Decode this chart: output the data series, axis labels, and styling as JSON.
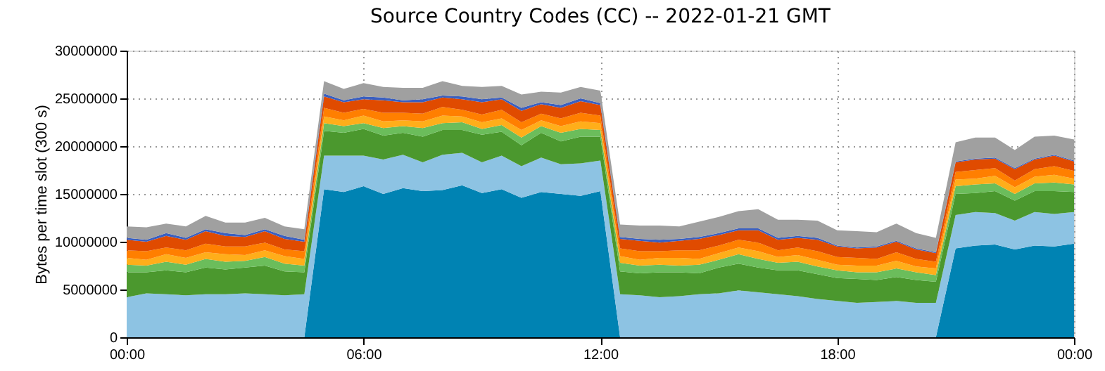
{
  "chart_data": {
    "type": "area",
    "stacked": true,
    "title": "Source Country Codes (CC) -- 2022-01-21 GMT",
    "ylabel": "Bytes per time slot (300 s)",
    "x": [
      0,
      0.5,
      1,
      1.5,
      2,
      2.5,
      3,
      3.5,
      4,
      4.5,
      5,
      5.5,
      6,
      6.5,
      7,
      7.5,
      8,
      8.5,
      9,
      9.5,
      10,
      10.5,
      11,
      11.5,
      12,
      12.5,
      13,
      13.5,
      14,
      14.5,
      15,
      15.5,
      16,
      16.5,
      17,
      17.5,
      18,
      18.5,
      19,
      19.5,
      20,
      20.5,
      21,
      21.5,
      22,
      22.5,
      23,
      23.5,
      24
    ],
    "series": [
      {
        "color": "#0083b3",
        "values": [
          0,
          0,
          0,
          0,
          0,
          0,
          0,
          0,
          0,
          0,
          15500000,
          15200000,
          15800000,
          15000000,
          15600000,
          15300000,
          15400000,
          15900000,
          15100000,
          15500000,
          14600000,
          15200000,
          15000000,
          14800000,
          15300000,
          0,
          0,
          0,
          0,
          0,
          0,
          0,
          0,
          0,
          0,
          0,
          0,
          0,
          0,
          0,
          0,
          0,
          9300000,
          9600000,
          9700000,
          9200000,
          9600000,
          9500000,
          9800000
        ]
      },
      {
        "color": "#8dc3e3",
        "values": [
          4200000,
          4600000,
          4500000,
          4400000,
          4500000,
          4500000,
          4600000,
          4500000,
          4400000,
          4500000,
          3500000,
          3800000,
          3200000,
          3600000,
          3500000,
          3000000,
          3700000,
          3400000,
          3200000,
          3500000,
          3300000,
          3600000,
          3100000,
          3400000,
          3200000,
          4500000,
          4400000,
          4200000,
          4300000,
          4500000,
          4600000,
          4900000,
          4700000,
          4500000,
          4300000,
          4000000,
          3800000,
          3600000,
          3700000,
          3800000,
          3600000,
          3600000,
          3500000,
          3500000,
          3300000,
          3000000,
          3500000,
          3400000,
          3300000
        ]
      },
      {
        "color": "#4b982e",
        "values": [
          2600000,
          2200000,
          2500000,
          2400000,
          2800000,
          2600000,
          2700000,
          3000000,
          2500000,
          2300000,
          2600000,
          2400000,
          2800000,
          2500000,
          2300000,
          2700000,
          2600000,
          2400000,
          2900000,
          2500000,
          2200000,
          2600000,
          2400000,
          2800000,
          2500000,
          2400000,
          2300000,
          2600000,
          2500000,
          2200000,
          2700000,
          2800000,
          2600000,
          2500000,
          2700000,
          2600000,
          2400000,
          2500000,
          2300000,
          2500000,
          2400000,
          2200000,
          2200000,
          2000000,
          2300000,
          2100000,
          2200000,
          2400000,
          2100000
        ]
      },
      {
        "color": "#6bbd5b",
        "values": [
          800000,
          700000,
          900000,
          800000,
          900000,
          800000,
          700000,
          900000,
          800000,
          700000,
          800000,
          700000,
          600000,
          800000,
          700000,
          900000,
          700000,
          800000,
          600000,
          700000,
          800000,
          700000,
          900000,
          800000,
          700000,
          900000,
          800000,
          800000,
          700000,
          900000,
          800000,
          1000000,
          900000,
          800000,
          900000,
          800000,
          800000,
          700000,
          800000,
          900000,
          800000,
          700000,
          800000,
          900000,
          800000,
          700000,
          800000,
          900000,
          800000
        ]
      },
      {
        "color": "#ffae1a",
        "values": [
          700000,
          600000,
          800000,
          700000,
          700000,
          800000,
          600000,
          700000,
          800000,
          700000,
          700000,
          600000,
          800000,
          700000,
          600000,
          700000,
          800000,
          600000,
          700000,
          700000,
          800000,
          600000,
          700000,
          800000,
          700000,
          700000,
          600000,
          700000,
          800000,
          600000,
          700000,
          700000,
          800000,
          600000,
          700000,
          700000,
          600000,
          700000,
          700000,
          800000,
          600000,
          700000,
          700000,
          600000,
          800000,
          700000,
          700000,
          800000,
          600000
        ]
      },
      {
        "color": "#ff7f00",
        "values": [
          800000,
          900000,
          700000,
          800000,
          900000,
          800000,
          900000,
          800000,
          700000,
          800000,
          900000,
          800000,
          700000,
          900000,
          800000,
          800000,
          900000,
          700000,
          800000,
          900000,
          800000,
          700000,
          800000,
          900000,
          800000,
          800000,
          900000,
          700000,
          800000,
          900000,
          800000,
          800000,
          900000,
          700000,
          800000,
          900000,
          800000,
          800000,
          700000,
          900000,
          800000,
          700000,
          800000,
          900000,
          800000,
          700000,
          800000,
          900000,
          800000
        ]
      },
      {
        "color": "#e04b00",
        "values": [
          1100000,
          1000000,
          1200000,
          1100000,
          1300000,
          1100000,
          1000000,
          1200000,
          1100000,
          1000000,
          1200000,
          1100000,
          1000000,
          1300000,
          1100000,
          1200000,
          1000000,
          1100000,
          1300000,
          1100000,
          1200000,
          1000000,
          1100000,
          1200000,
          1100000,
          1000000,
          1100000,
          900000,
          1000000,
          1200000,
          1100000,
          1000000,
          1300000,
          1100000,
          1000000,
          1200000,
          1100000,
          1000000,
          1200000,
          1100000,
          1000000,
          900000,
          1000000,
          1100000,
          1000000,
          1200000,
          1000000,
          1100000,
          1000000
        ]
      },
      {
        "color": "#3a5fc0",
        "values": [
          200000,
          200000,
          300000,
          200000,
          200000,
          300000,
          200000,
          200000,
          300000,
          200000,
          300000,
          200000,
          300000,
          300000,
          200000,
          300000,
          200000,
          300000,
          300000,
          200000,
          300000,
          200000,
          300000,
          300000,
          200000,
          200000,
          200000,
          300000,
          200000,
          200000,
          200000,
          200000,
          200000,
          200000,
          200000,
          200000,
          100000,
          100000,
          100000,
          100000,
          100000,
          100000,
          100000,
          100000,
          100000,
          100000,
          100000,
          100000,
          100000
        ]
      },
      {
        "color": "#a0a0a0",
        "values": [
          1200000,
          1300000,
          1000000,
          1200000,
          1400000,
          1100000,
          1300000,
          1200000,
          1000000,
          1100000,
          1300000,
          1200000,
          1400000,
          1100000,
          1300000,
          1200000,
          1500000,
          1100000,
          1300000,
          1200000,
          1400000,
          1100000,
          1300000,
          1200000,
          1300000,
          1300000,
          1400000,
          1500000,
          1300000,
          1600000,
          1700000,
          1800000,
          2000000,
          1900000,
          1700000,
          1800000,
          1600000,
          1700000,
          1500000,
          1800000,
          1600000,
          1500000,
          2000000,
          2200000,
          2100000,
          1900000,
          2300000,
          2000000,
          2200000
        ]
      }
    ],
    "xlim": [
      0,
      24
    ],
    "xticks": [
      {
        "value": 0,
        "label": "00:00"
      },
      {
        "value": 6,
        "label": "06:00"
      },
      {
        "value": 12,
        "label": "12:00"
      },
      {
        "value": 18,
        "label": "18:00"
      },
      {
        "value": 24,
        "label": "00:00"
      }
    ],
    "ylim": [
      0,
      30000000
    ],
    "yticks": [
      0,
      5000000,
      10000000,
      15000000,
      20000000,
      25000000,
      30000000
    ],
    "grid": true,
    "legend": false
  }
}
